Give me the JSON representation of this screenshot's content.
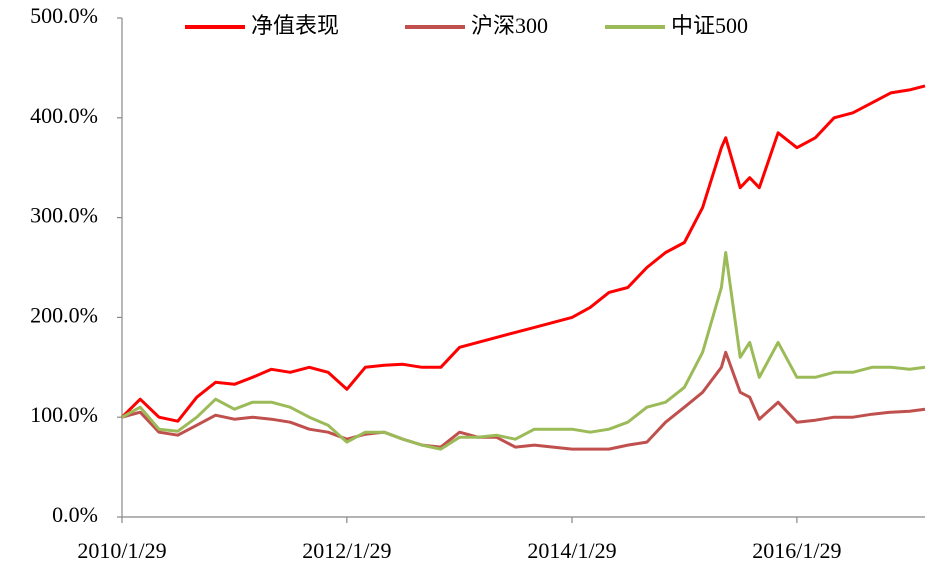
{
  "chart_data": {
    "type": "line",
    "x": [
      "2010/1/29",
      "2010/3/29",
      "2010/5/29",
      "2010/7/29",
      "2010/9/29",
      "2010/11/29",
      "2011/1/29",
      "2011/3/29",
      "2011/5/29",
      "2011/7/29",
      "2011/9/29",
      "2011/11/29",
      "2012/1/29",
      "2012/3/29",
      "2012/5/29",
      "2012/7/29",
      "2012/9/29",
      "2012/11/29",
      "2013/1/29",
      "2013/3/29",
      "2013/5/29",
      "2013/7/29",
      "2013/9/29",
      "2013/11/29",
      "2014/1/29",
      "2014/3/29",
      "2014/5/29",
      "2014/7/29",
      "2014/9/29",
      "2014/11/29",
      "2015/1/29",
      "2015/3/29",
      "2015/5/29",
      "2015/6/12",
      "2015/7/29",
      "2015/8/29",
      "2015/9/29",
      "2015/11/29",
      "2016/1/29",
      "2016/3/29",
      "2016/5/29",
      "2016/7/29",
      "2016/9/29",
      "2016/11/29",
      "2017/1/29",
      "2017/3/20"
    ],
    "series": [
      {
        "name": "净值表现",
        "color": "#ff0000",
        "values": [
          100,
          118,
          100,
          96,
          120,
          135,
          133,
          140,
          148,
          145,
          150,
          145,
          128,
          150,
          152,
          153,
          150,
          150,
          170,
          175,
          180,
          185,
          190,
          195,
          200,
          210,
          225,
          230,
          250,
          265,
          275,
          310,
          370,
          380,
          330,
          340,
          330,
          385,
          370,
          380,
          400,
          405,
          415,
          425,
          428,
          432
        ]
      },
      {
        "name": "沪深300",
        "color": "#c0504d",
        "values": [
          100,
          105,
          85,
          82,
          92,
          102,
          98,
          100,
          98,
          95,
          88,
          85,
          78,
          83,
          85,
          78,
          72,
          70,
          85,
          80,
          80,
          70,
          72,
          70,
          68,
          68,
          68,
          72,
          75,
          95,
          110,
          125,
          150,
          165,
          125,
          120,
          98,
          115,
          95,
          97,
          100,
          100,
          103,
          105,
          106,
          108
        ]
      },
      {
        "name": "中证500",
        "color": "#9bbb59",
        "values": [
          100,
          110,
          88,
          86,
          100,
          118,
          108,
          115,
          115,
          110,
          100,
          92,
          75,
          85,
          85,
          78,
          72,
          68,
          80,
          80,
          82,
          78,
          88,
          88,
          88,
          85,
          88,
          95,
          110,
          115,
          130,
          165,
          230,
          265,
          160,
          175,
          140,
          175,
          140,
          140,
          145,
          145,
          150,
          150,
          148,
          150
        ]
      }
    ],
    "xlim": [
      "2010/1/29",
      "2017/3/20"
    ],
    "xticks": [
      "2010/1/29",
      "2012/1/29",
      "2014/1/29",
      "2016/1/29"
    ],
    "ylim": [
      0,
      500
    ],
    "yticks": [
      {
        "value": 0,
        "label": "0.0%"
      },
      {
        "value": 100,
        "label": "100.0%"
      },
      {
        "value": 200,
        "label": "200.0%"
      },
      {
        "value": 300,
        "label": "300.0%"
      },
      {
        "value": 400,
        "label": "400.0%"
      },
      {
        "value": 500,
        "label": "500.0%"
      }
    ]
  }
}
